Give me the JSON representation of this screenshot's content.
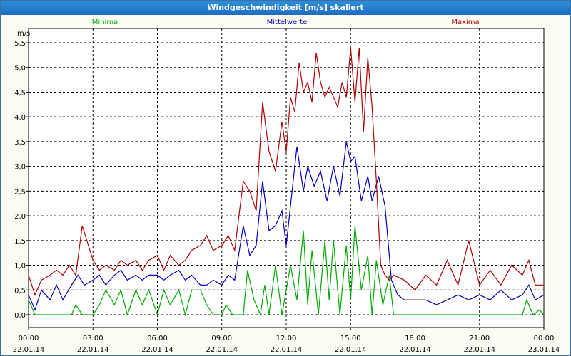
{
  "window": {
    "title": "Windgeschwindigkeit [m/s] skaliert"
  },
  "chart_data": {
    "type": "line",
    "title": "Windgeschwindigkeit [m/s] skaliert",
    "ylabel": "m/s",
    "xlabel": "",
    "ylim": [
      0,
      5.5
    ],
    "xlim": [
      0,
      24
    ],
    "grid": true,
    "legend_placement": "top",
    "y_ticks": [
      {
        "value": 0.0,
        "label": "0,0"
      },
      {
        "value": 0.5,
        "label": "0,5"
      },
      {
        "value": 1.0,
        "label": "1,0"
      },
      {
        "value": 1.5,
        "label": "1,5"
      },
      {
        "value": 2.0,
        "label": "2,0"
      },
      {
        "value": 2.5,
        "label": "2,5"
      },
      {
        "value": 3.0,
        "label": "3,0"
      },
      {
        "value": 3.5,
        "label": "3,5"
      },
      {
        "value": 4.0,
        "label": "4,0"
      },
      {
        "value": 4.5,
        "label": "4,5"
      },
      {
        "value": 5.0,
        "label": "5,0"
      },
      {
        "value": 5.5,
        "label": "5,5"
      }
    ],
    "x_ticks": [
      {
        "value": 0,
        "time": "00:00",
        "date": "22.01.14"
      },
      {
        "value": 3,
        "time": "03:00",
        "date": "22.01.14"
      },
      {
        "value": 6,
        "time": "06:00",
        "date": "22.01.14"
      },
      {
        "value": 9,
        "time": "09:00",
        "date": "22.01.14"
      },
      {
        "value": 12,
        "time": "12:00",
        "date": "22.01.14"
      },
      {
        "value": 15,
        "time": "15:00",
        "date": "22.01.14"
      },
      {
        "value": 18,
        "time": "18:00",
        "date": "22.01.14"
      },
      {
        "value": 21,
        "time": "21:00",
        "date": "22.01.14"
      },
      {
        "value": 24,
        "time": "00:00",
        "date": "23.01.14"
      }
    ],
    "series": [
      {
        "name": "Minima",
        "color": "#00aa00",
        "x": [
          0,
          0.3,
          0.6,
          1,
          1.5,
          2,
          2.2,
          2.5,
          3,
          3.3,
          3.6,
          4,
          4.3,
          4.6,
          5,
          5.3,
          5.6,
          6,
          6.3,
          6.6,
          7,
          7.3,
          7.6,
          8,
          8.3,
          8.6,
          9,
          9.2,
          9.5,
          10,
          10.2,
          10.5,
          10.8,
          11,
          11.2,
          11.5,
          11.8,
          12,
          12.2,
          12.5,
          12.8,
          13,
          13.2,
          13.5,
          13.8,
          14,
          14.2,
          14.5,
          14.8,
          15,
          15.2,
          15.5,
          15.8,
          16,
          16.2,
          16.5,
          16.8,
          17,
          17.5,
          18,
          18.5,
          19,
          19.5,
          20,
          20.5,
          21,
          21.5,
          22,
          22.5,
          23,
          23.2,
          23.5,
          23.8,
          24
        ],
        "values": [
          0.3,
          0,
          0,
          0,
          0,
          0,
          0.2,
          0,
          0,
          0.2,
          0.5,
          0.2,
          0.5,
          0,
          0.5,
          0.2,
          0.5,
          0,
          0.5,
          0.2,
          0.5,
          0,
          0.5,
          0.5,
          0.2,
          0,
          0,
          0.2,
          0,
          0,
          0.9,
          0.3,
          0,
          0.6,
          0,
          1.0,
          0,
          0.5,
          1.0,
          0.3,
          1.7,
          0.2,
          1.3,
          0,
          1.5,
          0.3,
          1.5,
          0,
          1.4,
          0.3,
          1.8,
          0.5,
          1.2,
          0,
          1.1,
          0.2,
          0.8,
          0,
          0,
          0,
          0,
          0,
          0,
          0,
          0,
          0,
          0,
          0,
          0,
          0,
          0.3,
          0,
          0.1,
          0
        ]
      },
      {
        "name": "Mittelwerte",
        "color": "#0000c0",
        "x": [
          0,
          0.3,
          0.6,
          1,
          1.3,
          1.6,
          2,
          2.3,
          2.6,
          3,
          3.3,
          3.6,
          4,
          4.3,
          4.6,
          5,
          5.3,
          5.6,
          6,
          6.3,
          6.6,
          7,
          7.3,
          7.6,
          8,
          8.3,
          8.6,
          9,
          9.3,
          9.6,
          10,
          10.3,
          10.6,
          10.9,
          11.2,
          11.5,
          11.8,
          12,
          12.2,
          12.5,
          12.8,
          13,
          13.3,
          13.6,
          13.9,
          14.2,
          14.5,
          14.8,
          15,
          15.2,
          15.5,
          15.8,
          16,
          16.3,
          16.6,
          16.9,
          17.2,
          17.5,
          18,
          18.5,
          19,
          19.5,
          20,
          20.5,
          21,
          21.5,
          22,
          22.5,
          23,
          23.3,
          23.6,
          24
        ],
        "values": [
          0.4,
          0.1,
          0.5,
          0.3,
          0.6,
          0.3,
          0.6,
          0.8,
          0.6,
          0.7,
          0.8,
          0.6,
          0.8,
          0.9,
          0.7,
          0.8,
          0.7,
          0.8,
          0.8,
          0.7,
          0.8,
          0.9,
          0.7,
          0.8,
          0.6,
          0.6,
          0.7,
          0.6,
          0.8,
          0.7,
          1.8,
          1.2,
          1.4,
          2.7,
          1.7,
          1.8,
          2.1,
          1.4,
          2.2,
          3.4,
          2.5,
          3.0,
          2.6,
          2.9,
          2.3,
          3.0,
          2.4,
          3.5,
          3.1,
          3.2,
          2.3,
          2.8,
          2.3,
          2.8,
          2.2,
          0.7,
          0.4,
          0.3,
          0.3,
          0.3,
          0.2,
          0.3,
          0.4,
          0.3,
          0.4,
          0.3,
          0.5,
          0.3,
          0.4,
          0.6,
          0.3,
          0.4
        ]
      },
      {
        "name": "Maxima",
        "color": "#b00000",
        "x": [
          0,
          0.3,
          0.6,
          1,
          1.3,
          1.6,
          1.9,
          2.2,
          2.5,
          3,
          3.3,
          3.6,
          4,
          4.3,
          4.6,
          5,
          5.3,
          5.6,
          6,
          6.3,
          6.6,
          7,
          7.3,
          7.6,
          8,
          8.3,
          8.6,
          9,
          9.3,
          9.6,
          10,
          10.3,
          10.6,
          10.9,
          11.2,
          11.5,
          11.8,
          12,
          12.2,
          12.4,
          12.6,
          12.8,
          13,
          13.2,
          13.4,
          13.6,
          13.8,
          14,
          14.2,
          14.4,
          14.6,
          14.8,
          15,
          15.2,
          15.4,
          15.6,
          15.8,
          16,
          16.2,
          16.4,
          16.6,
          16.8,
          17,
          17.5,
          18,
          18.5,
          19,
          19.5,
          20,
          20.5,
          21,
          21.5,
          22,
          22.5,
          23,
          23.3,
          23.6,
          24
        ],
        "values": [
          0.8,
          0.4,
          0.7,
          0.8,
          0.9,
          0.8,
          1.0,
          0.8,
          1.8,
          1.1,
          0.9,
          1.0,
          0.9,
          1.1,
          1.0,
          1.1,
          0.9,
          1.1,
          1.2,
          0.9,
          1.2,
          1.0,
          1.1,
          1.3,
          1.4,
          1.6,
          1.3,
          1.4,
          1.6,
          1.3,
          2.7,
          2.5,
          2.1,
          4.3,
          3.3,
          2.9,
          3.9,
          3.3,
          4.4,
          4.1,
          5.1,
          4.5,
          4.7,
          4.3,
          5.3,
          4.7,
          4.4,
          4.6,
          4.4,
          4.2,
          4.7,
          4.4,
          5.4,
          4.3,
          5.4,
          3.7,
          5.2,
          4.2,
          2.7,
          1.0,
          0.8,
          0.7,
          0.8,
          0.7,
          0.5,
          0.8,
          0.6,
          1.1,
          0.6,
          1.5,
          0.6,
          0.9,
          0.6,
          1.0,
          0.8,
          1.1,
          0.6,
          0.6
        ]
      }
    ]
  }
}
